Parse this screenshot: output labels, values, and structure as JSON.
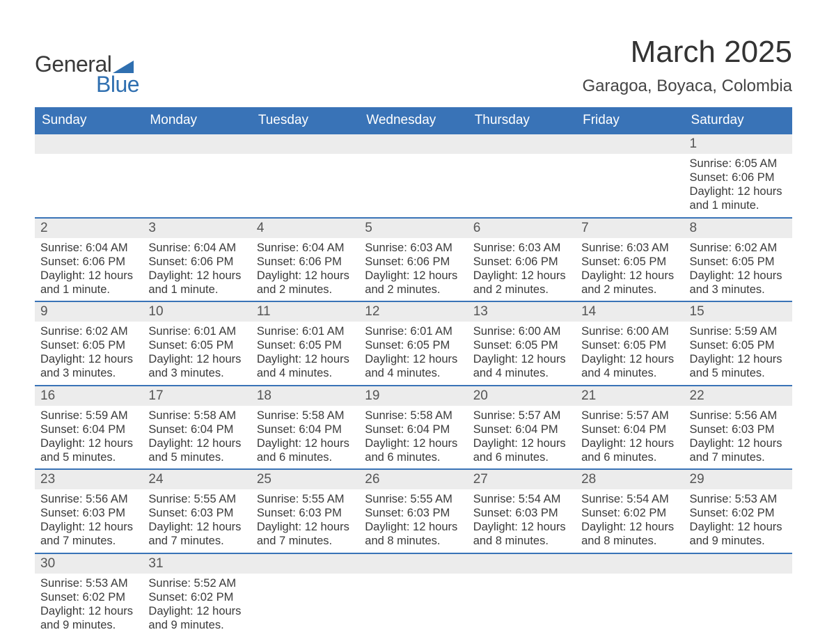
{
  "brand": {
    "word1": "General",
    "word2": "Blue",
    "shape_color": "#2f6fb0",
    "text_color_dark": "#3a3a3a",
    "text_color_blue": "#2f6fb0"
  },
  "header": {
    "month_title": "March 2025",
    "location": "Garagoa, Boyaca, Colombia"
  },
  "style": {
    "header_bg": "#3973b7",
    "header_text": "#ffffff",
    "daynum_bg": "#ececec",
    "daynum_text": "#555555",
    "row_border": "#3973b7",
    "body_text": "#3a3a3a",
    "page_bg": "#ffffff",
    "month_title_fontsize": 44,
    "location_fontsize": 24,
    "header_fontsize": 19,
    "daynum_fontsize": 19,
    "detail_fontsize": 16.5
  },
  "columns": [
    "Sunday",
    "Monday",
    "Tuesday",
    "Wednesday",
    "Thursday",
    "Friday",
    "Saturday"
  ],
  "weeks": [
    {
      "nums": [
        "",
        "",
        "",
        "",
        "",
        "",
        "1"
      ],
      "cells": [
        null,
        null,
        null,
        null,
        null,
        null,
        {
          "sunrise": "Sunrise: 6:05 AM",
          "sunset": "Sunset: 6:06 PM",
          "day1": "Daylight: 12 hours",
          "day2": "and 1 minute."
        }
      ]
    },
    {
      "nums": [
        "2",
        "3",
        "4",
        "5",
        "6",
        "7",
        "8"
      ],
      "cells": [
        {
          "sunrise": "Sunrise: 6:04 AM",
          "sunset": "Sunset: 6:06 PM",
          "day1": "Daylight: 12 hours",
          "day2": "and 1 minute."
        },
        {
          "sunrise": "Sunrise: 6:04 AM",
          "sunset": "Sunset: 6:06 PM",
          "day1": "Daylight: 12 hours",
          "day2": "and 1 minute."
        },
        {
          "sunrise": "Sunrise: 6:04 AM",
          "sunset": "Sunset: 6:06 PM",
          "day1": "Daylight: 12 hours",
          "day2": "and 2 minutes."
        },
        {
          "sunrise": "Sunrise: 6:03 AM",
          "sunset": "Sunset: 6:06 PM",
          "day1": "Daylight: 12 hours",
          "day2": "and 2 minutes."
        },
        {
          "sunrise": "Sunrise: 6:03 AM",
          "sunset": "Sunset: 6:06 PM",
          "day1": "Daylight: 12 hours",
          "day2": "and 2 minutes."
        },
        {
          "sunrise": "Sunrise: 6:03 AM",
          "sunset": "Sunset: 6:05 PM",
          "day1": "Daylight: 12 hours",
          "day2": "and 2 minutes."
        },
        {
          "sunrise": "Sunrise: 6:02 AM",
          "sunset": "Sunset: 6:05 PM",
          "day1": "Daylight: 12 hours",
          "day2": "and 3 minutes."
        }
      ]
    },
    {
      "nums": [
        "9",
        "10",
        "11",
        "12",
        "13",
        "14",
        "15"
      ],
      "cells": [
        {
          "sunrise": "Sunrise: 6:02 AM",
          "sunset": "Sunset: 6:05 PM",
          "day1": "Daylight: 12 hours",
          "day2": "and 3 minutes."
        },
        {
          "sunrise": "Sunrise: 6:01 AM",
          "sunset": "Sunset: 6:05 PM",
          "day1": "Daylight: 12 hours",
          "day2": "and 3 minutes."
        },
        {
          "sunrise": "Sunrise: 6:01 AM",
          "sunset": "Sunset: 6:05 PM",
          "day1": "Daylight: 12 hours",
          "day2": "and 4 minutes."
        },
        {
          "sunrise": "Sunrise: 6:01 AM",
          "sunset": "Sunset: 6:05 PM",
          "day1": "Daylight: 12 hours",
          "day2": "and 4 minutes."
        },
        {
          "sunrise": "Sunrise: 6:00 AM",
          "sunset": "Sunset: 6:05 PM",
          "day1": "Daylight: 12 hours",
          "day2": "and 4 minutes."
        },
        {
          "sunrise": "Sunrise: 6:00 AM",
          "sunset": "Sunset: 6:05 PM",
          "day1": "Daylight: 12 hours",
          "day2": "and 4 minutes."
        },
        {
          "sunrise": "Sunrise: 5:59 AM",
          "sunset": "Sunset: 6:05 PM",
          "day1": "Daylight: 12 hours",
          "day2": "and 5 minutes."
        }
      ]
    },
    {
      "nums": [
        "16",
        "17",
        "18",
        "19",
        "20",
        "21",
        "22"
      ],
      "cells": [
        {
          "sunrise": "Sunrise: 5:59 AM",
          "sunset": "Sunset: 6:04 PM",
          "day1": "Daylight: 12 hours",
          "day2": "and 5 minutes."
        },
        {
          "sunrise": "Sunrise: 5:58 AM",
          "sunset": "Sunset: 6:04 PM",
          "day1": "Daylight: 12 hours",
          "day2": "and 5 minutes."
        },
        {
          "sunrise": "Sunrise: 5:58 AM",
          "sunset": "Sunset: 6:04 PM",
          "day1": "Daylight: 12 hours",
          "day2": "and 6 minutes."
        },
        {
          "sunrise": "Sunrise: 5:58 AM",
          "sunset": "Sunset: 6:04 PM",
          "day1": "Daylight: 12 hours",
          "day2": "and 6 minutes."
        },
        {
          "sunrise": "Sunrise: 5:57 AM",
          "sunset": "Sunset: 6:04 PM",
          "day1": "Daylight: 12 hours",
          "day2": "and 6 minutes."
        },
        {
          "sunrise": "Sunrise: 5:57 AM",
          "sunset": "Sunset: 6:04 PM",
          "day1": "Daylight: 12 hours",
          "day2": "and 6 minutes."
        },
        {
          "sunrise": "Sunrise: 5:56 AM",
          "sunset": "Sunset: 6:03 PM",
          "day1": "Daylight: 12 hours",
          "day2": "and 7 minutes."
        }
      ]
    },
    {
      "nums": [
        "23",
        "24",
        "25",
        "26",
        "27",
        "28",
        "29"
      ],
      "cells": [
        {
          "sunrise": "Sunrise: 5:56 AM",
          "sunset": "Sunset: 6:03 PM",
          "day1": "Daylight: 12 hours",
          "day2": "and 7 minutes."
        },
        {
          "sunrise": "Sunrise: 5:55 AM",
          "sunset": "Sunset: 6:03 PM",
          "day1": "Daylight: 12 hours",
          "day2": "and 7 minutes."
        },
        {
          "sunrise": "Sunrise: 5:55 AM",
          "sunset": "Sunset: 6:03 PM",
          "day1": "Daylight: 12 hours",
          "day2": "and 7 minutes."
        },
        {
          "sunrise": "Sunrise: 5:55 AM",
          "sunset": "Sunset: 6:03 PM",
          "day1": "Daylight: 12 hours",
          "day2": "and 8 minutes."
        },
        {
          "sunrise": "Sunrise: 5:54 AM",
          "sunset": "Sunset: 6:03 PM",
          "day1": "Daylight: 12 hours",
          "day2": "and 8 minutes."
        },
        {
          "sunrise": "Sunrise: 5:54 AM",
          "sunset": "Sunset: 6:02 PM",
          "day1": "Daylight: 12 hours",
          "day2": "and 8 minutes."
        },
        {
          "sunrise": "Sunrise: 5:53 AM",
          "sunset": "Sunset: 6:02 PM",
          "day1": "Daylight: 12 hours",
          "day2": "and 9 minutes."
        }
      ]
    },
    {
      "nums": [
        "30",
        "31",
        "",
        "",
        "",
        "",
        ""
      ],
      "cells": [
        {
          "sunrise": "Sunrise: 5:53 AM",
          "sunset": "Sunset: 6:02 PM",
          "day1": "Daylight: 12 hours",
          "day2": "and 9 minutes."
        },
        {
          "sunrise": "Sunrise: 5:52 AM",
          "sunset": "Sunset: 6:02 PM",
          "day1": "Daylight: 12 hours",
          "day2": "and 9 minutes."
        },
        null,
        null,
        null,
        null,
        null
      ]
    }
  ]
}
